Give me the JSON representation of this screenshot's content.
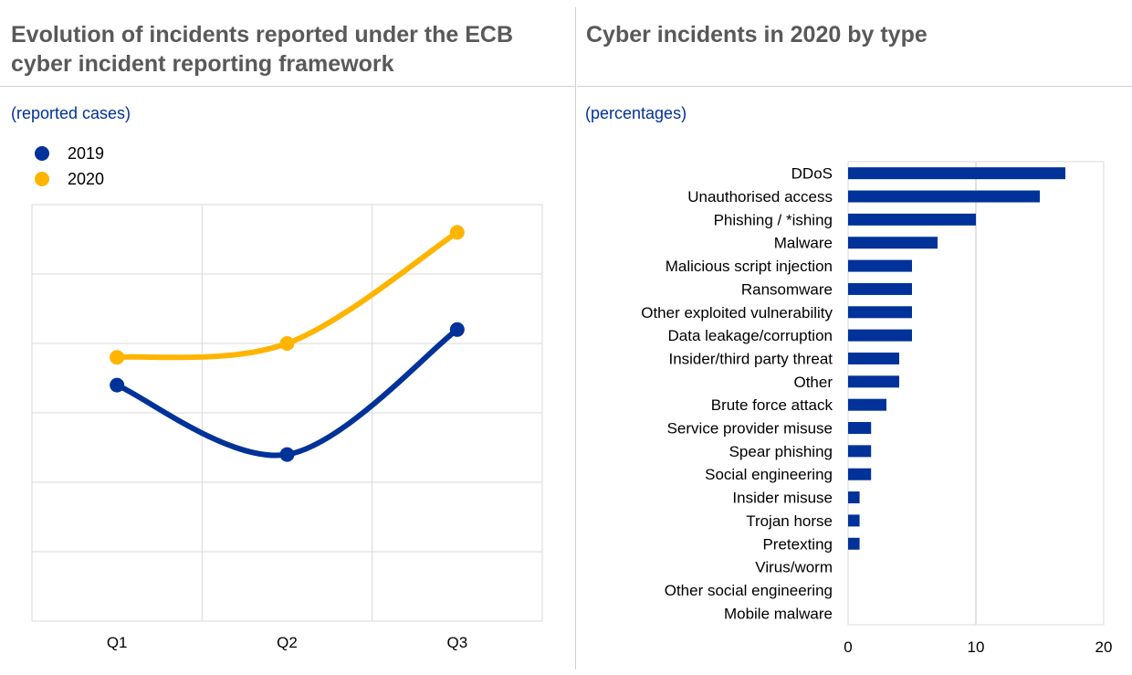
{
  "left": {
    "title": "Evolution of incidents reported under the ECB cyber incident reporting framework",
    "subtitle": "(reported cases)",
    "legend": [
      {
        "label": "2019",
        "color": "#003299"
      },
      {
        "label": "2020",
        "color": "#FFB400"
      }
    ]
  },
  "right": {
    "title": "Cyber incidents in 2020 by type",
    "subtitle": "(percentages)"
  },
  "chart_data": [
    {
      "type": "line",
      "title": "Evolution of incidents reported under the ECB cyber incident reporting framework",
      "ylabel": "",
      "categories": [
        "Q1",
        "Q2",
        "Q3"
      ],
      "ylim": [
        0,
        6
      ],
      "y_tick_labels_shown": false,
      "smooth": true,
      "grid": true,
      "legend_position": "top-left",
      "series": [
        {
          "name": "2019",
          "color": "#003299",
          "values": [
            3.4,
            2.4,
            4.2
          ]
        },
        {
          "name": "2020",
          "color": "#FFB400",
          "values": [
            3.8,
            4.0,
            5.6
          ]
        }
      ]
    },
    {
      "type": "bar",
      "orientation": "horizontal",
      "title": "Cyber incidents in 2020 by type",
      "ylabel": "",
      "xlim": [
        0,
        20
      ],
      "x_ticks": [
        0,
        10,
        20
      ],
      "grid": true,
      "color": "#003299",
      "categories": [
        "DDoS",
        "Unauthorised access",
        "Phishing / *ishing",
        "Malware",
        "Malicious script injection",
        "Ransomware",
        "Other exploited vulnerability",
        "Data leakage/corruption",
        "Insider/third party threat",
        "Other",
        "Brute force attack",
        "Service provider misuse",
        "Spear phishing",
        "Social engineering",
        "Insider misuse",
        "Trojan horse",
        "Pretexting",
        "Virus/worm",
        "Other social engineering",
        "Mobile malware"
      ],
      "values": [
        17,
        15,
        10,
        7,
        5,
        5,
        5,
        5,
        4,
        4,
        3,
        1.8,
        1.8,
        1.8,
        0.9,
        0.9,
        0.9,
        0,
        0,
        0
      ]
    }
  ]
}
